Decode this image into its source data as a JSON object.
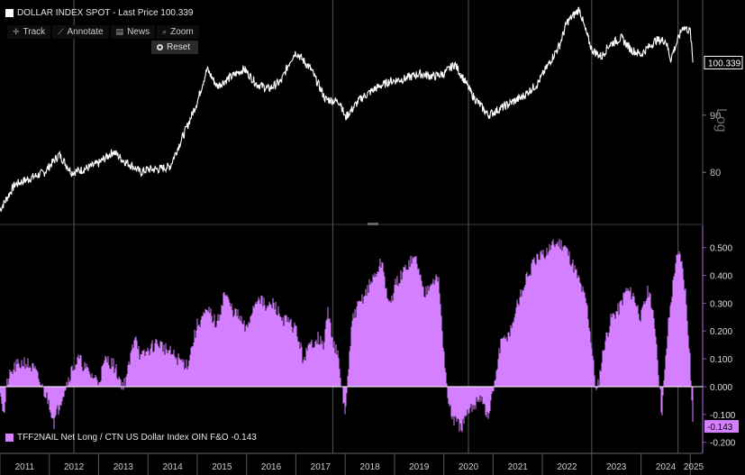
{
  "title": "DOLLAR INDEX SPOT - Last Price 100.339",
  "toolbar": {
    "track": "Track",
    "annotate": "Annotate",
    "news": "News",
    "zoom": "Zoom",
    "reset": "Reset"
  },
  "legend2_text": "TFF2NAIL Net Long / CTN US Dollar Index OIN F&O -0.143",
  "colors": {
    "background": "#000000",
    "dxy_line": "#ffffff",
    "net_long_fill": "#d47fff",
    "last_tag_bottom": "#d47fff",
    "last_tag_top": "#ffffff"
  },
  "chart_data": [
    {
      "type": "line",
      "series_name": "DOLLAR INDEX SPOT",
      "last_value_label": "100.339",
      "scale": "log",
      "scale_label": "Log",
      "ylim": [
        72,
        112
      ],
      "yticks": [
        80,
        90
      ],
      "ytick_labels": [
        "80",
        "90"
      ],
      "x": [
        2011.0,
        2011.3,
        2011.6,
        2011.9,
        2012.2,
        2012.45,
        2012.7,
        2013.0,
        2013.3,
        2013.5,
        2013.7,
        2013.85,
        2014.0,
        2014.2,
        2014.45,
        2014.6,
        2014.8,
        2015.0,
        2015.2,
        2015.4,
        2015.7,
        2015.95,
        2016.2,
        2016.45,
        2016.7,
        2016.9,
        2017.0,
        2017.3,
        2017.6,
        2017.9,
        2018.0,
        2018.3,
        2018.6,
        2018.9,
        2019.2,
        2019.5,
        2019.8,
        2020.0,
        2020.22,
        2020.4,
        2020.6,
        2020.9,
        2021.0,
        2021.3,
        2021.6,
        2021.9,
        2022.1,
        2022.35,
        2022.5,
        2022.75,
        2022.85,
        2023.0,
        2023.2,
        2023.35,
        2023.6,
        2023.8,
        2024.0,
        2024.3,
        2024.5,
        2024.6,
        2024.85,
        2025.0,
        2025.05
      ],
      "values": [
        74,
        78,
        79,
        80,
        83,
        80,
        80.5,
        81.5,
        83.5,
        82,
        81,
        80,
        80.5,
        80.5,
        81,
        84,
        88,
        92.5,
        99,
        95.5,
        97.5,
        99,
        96,
        95,
        96.5,
        101,
        102.5,
        99,
        93,
        92.5,
        89.5,
        93,
        95,
        96.5,
        97,
        98,
        97.5,
        98,
        100,
        97,
        93.5,
        90,
        90.5,
        92,
        93.5,
        96,
        99.5,
        104,
        109,
        112,
        108,
        103,
        101.5,
        104,
        105.5,
        103,
        102,
        105,
        105,
        101,
        108,
        107,
        100.3
      ]
    },
    {
      "type": "area",
      "series_name": "TFF2NAIL Net Long / CTN US Dollar Index OIN F&O",
      "last_value_label": "-0.143",
      "ylim": [
        -0.24,
        0.58
      ],
      "yticks": [
        -0.2,
        -0.1,
        0.0,
        0.1,
        0.2,
        0.3,
        0.4,
        0.5
      ],
      "ytick_labels": [
        "-0.200",
        "-0.100",
        "0.000",
        "0.100",
        "0.200",
        "0.300",
        "0.400",
        "0.500"
      ],
      "x": [
        2011.0,
        2011.08,
        2011.15,
        2011.3,
        2011.5,
        2011.7,
        2011.85,
        2012.0,
        2012.1,
        2012.25,
        2012.45,
        2012.6,
        2012.8,
        2013.0,
        2013.15,
        2013.3,
        2013.5,
        2013.6,
        2013.75,
        2013.85,
        2014.0,
        2014.2,
        2014.4,
        2014.6,
        2014.8,
        2015.0,
        2015.1,
        2015.25,
        2015.4,
        2015.55,
        2015.7,
        2015.85,
        2016.0,
        2016.1,
        2016.25,
        2016.4,
        2016.55,
        2016.7,
        2016.85,
        2017.0,
        2017.15,
        2017.3,
        2017.45,
        2017.55,
        2017.65,
        2017.75,
        2017.85,
        2018.0,
        2018.15,
        2018.3,
        2018.45,
        2018.6,
        2018.75,
        2018.9,
        2019.0,
        2019.15,
        2019.3,
        2019.45,
        2019.6,
        2019.75,
        2019.9,
        2020.0,
        2020.1,
        2020.2,
        2020.35,
        2020.5,
        2020.6,
        2020.75,
        2020.9,
        2021.0,
        2021.15,
        2021.35,
        2021.5,
        2021.7,
        2021.85,
        2022.0,
        2022.15,
        2022.3,
        2022.45,
        2022.6,
        2022.75,
        2022.9,
        2023.0,
        2023.1,
        2023.25,
        2023.4,
        2023.55,
        2023.7,
        2023.85,
        2024.0,
        2024.15,
        2024.3,
        2024.42,
        2024.55,
        2024.7,
        2024.8,
        2024.9,
        2025.0,
        2025.05
      ],
      "values": [
        0.0,
        -0.11,
        0.02,
        0.07,
        0.09,
        0.06,
        0.0,
        -0.06,
        -0.13,
        -0.04,
        0.06,
        0.1,
        0.05,
        0.02,
        0.1,
        0.08,
        0.0,
        0.06,
        0.2,
        0.1,
        0.13,
        0.16,
        0.13,
        0.1,
        0.08,
        0.22,
        0.25,
        0.27,
        0.22,
        0.34,
        0.28,
        0.25,
        0.2,
        0.27,
        0.33,
        0.28,
        0.3,
        0.25,
        0.23,
        0.21,
        0.1,
        0.15,
        0.18,
        0.14,
        0.27,
        0.17,
        0.11,
        -0.1,
        0.25,
        0.3,
        0.35,
        0.4,
        0.45,
        0.28,
        0.36,
        0.4,
        0.45,
        0.46,
        0.33,
        0.39,
        0.38,
        0.13,
        -0.07,
        -0.12,
        -0.15,
        -0.1,
        -0.07,
        -0.03,
        -0.12,
        -0.02,
        0.15,
        0.2,
        0.3,
        0.4,
        0.45,
        0.47,
        0.5,
        0.52,
        0.51,
        0.45,
        0.38,
        0.3,
        0.15,
        -0.03,
        0.15,
        0.25,
        0.28,
        0.35,
        0.33,
        0.25,
        0.35,
        0.2,
        -0.1,
        0.22,
        0.45,
        0.48,
        0.35,
        0.1,
        -0.143
      ]
    }
  ],
  "x_axis": {
    "range": [
      2011.0,
      2025.25
    ],
    "years": [
      "2011",
      "2012",
      "2013",
      "2014",
      "2015",
      "2016",
      "2017",
      "2018",
      "2019",
      "2020",
      "2021",
      "2022",
      "2023",
      "2024",
      "2025"
    ],
    "vertical_markers": [
      2012.5,
      2017.75,
      2020.5,
      2023.0,
      2024.75
    ]
  }
}
